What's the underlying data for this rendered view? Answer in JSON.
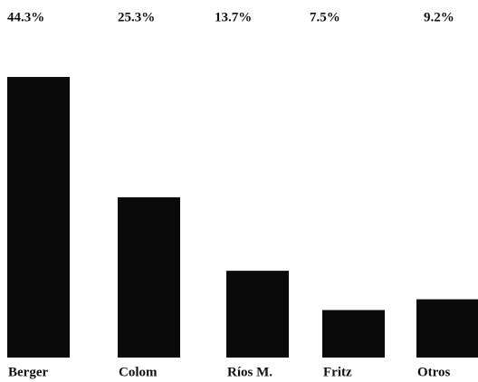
{
  "chart_data": {
    "type": "bar",
    "categories": [
      "Berger",
      "Colom",
      "Ríos M.",
      "Fritz",
      "Otros"
    ],
    "values": [
      44.3,
      25.3,
      13.7,
      7.5,
      9.2
    ],
    "value_labels": [
      "44.3%",
      "25.3%",
      "13.7%",
      "7.5%",
      "9.2%"
    ],
    "color": "#0a0a0a"
  }
}
